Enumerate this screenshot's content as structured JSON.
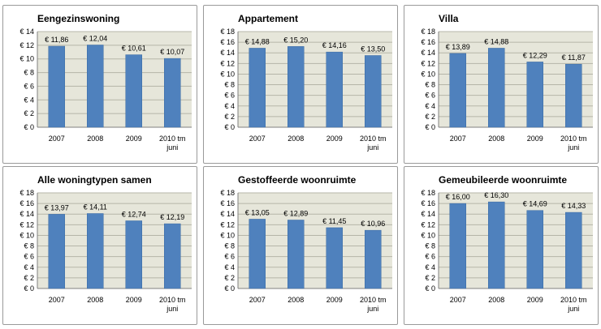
{
  "chart_data": [
    {
      "type": "bar",
      "title": "Eengezinswoning",
      "categories": [
        "2007",
        "2008",
        "2009",
        "2010 tm juni"
      ],
      "values": [
        11.86,
        12.04,
        10.61,
        10.07
      ],
      "data_labels": [
        "€ 11,86",
        "€ 12,04",
        "€ 10,61",
        "€ 10,07"
      ],
      "ylim": [
        0,
        14
      ],
      "yticks": [
        "€ 0",
        "€ 2",
        "€ 4",
        "€ 6",
        "€ 8",
        "€ 10",
        "€ 12",
        "€ 14"
      ],
      "grid": true,
      "legend": "none"
    },
    {
      "type": "bar",
      "title": "Appartement",
      "categories": [
        "2007",
        "2008",
        "2009",
        "2010 tm juni"
      ],
      "values": [
        14.88,
        15.2,
        14.16,
        13.5
      ],
      "data_labels": [
        "€ 14,88",
        "€ 15,20",
        "€ 14,16",
        "€ 13,50"
      ],
      "ylim": [
        0,
        18
      ],
      "yticks": [
        "€ 0",
        "€ 2",
        "€ 4",
        "€ 6",
        "€ 8",
        "€ 10",
        "€ 12",
        "€ 14",
        "€ 16",
        "€ 18"
      ],
      "grid": true,
      "legend": "none"
    },
    {
      "type": "bar",
      "title": "Villa",
      "categories": [
        "2007",
        "2008",
        "2009",
        "2010 tm juni"
      ],
      "values": [
        13.89,
        14.88,
        12.29,
        11.87
      ],
      "data_labels": [
        "€ 13,89",
        "€ 14,88",
        "€ 12,29",
        "€ 11,87"
      ],
      "ylim": [
        0,
        18
      ],
      "yticks": [
        "€ 0",
        "€ 2",
        "€ 4",
        "€ 6",
        "€ 8",
        "€ 10",
        "€ 12",
        "€ 14",
        "€ 16",
        "€ 18"
      ],
      "grid": true,
      "legend": "none"
    },
    {
      "type": "bar",
      "title": "Alle woningtypen samen",
      "categories": [
        "2007",
        "2008",
        "2009",
        "2010 tm juni"
      ],
      "values": [
        13.97,
        14.11,
        12.74,
        12.19
      ],
      "data_labels": [
        "€ 13,97",
        "€ 14,11",
        "€ 12,74",
        "€ 12,19"
      ],
      "ylim": [
        0,
        18
      ],
      "yticks": [
        "€ 0",
        "€ 2",
        "€ 4",
        "€ 6",
        "€ 8",
        "€ 10",
        "€ 12",
        "€ 14",
        "€ 16",
        "€ 18"
      ],
      "grid": true,
      "legend": "none"
    },
    {
      "type": "bar",
      "title": "Gestoffeerde woonruimte",
      "categories": [
        "2007",
        "2008",
        "2009",
        "2010 tm juni"
      ],
      "values": [
        13.05,
        12.89,
        11.45,
        10.96
      ],
      "data_labels": [
        "€ 13,05",
        "€ 12,89",
        "€ 11,45",
        "€ 10,96"
      ],
      "ylim": [
        0,
        18
      ],
      "yticks": [
        "€ 0",
        "€ 2",
        "€ 4",
        "€ 6",
        "€ 8",
        "€ 10",
        "€ 12",
        "€ 14",
        "€ 16",
        "€ 18"
      ],
      "grid": true,
      "legend": "none"
    },
    {
      "type": "bar",
      "title": "Gemeubileerde woonruimte",
      "categories": [
        "2007",
        "2008",
        "2009",
        "2010 tm juni"
      ],
      "values": [
        16.0,
        16.3,
        14.69,
        14.33
      ],
      "data_labels": [
        "€ 16,00",
        "€ 16,30",
        "€ 14,69",
        "€ 14,33"
      ],
      "ylim": [
        0,
        18
      ],
      "yticks": [
        "€ 0",
        "€ 2",
        "€ 4",
        "€ 6",
        "€ 8",
        "€ 10",
        "€ 12",
        "€ 14",
        "€ 16",
        "€ 18"
      ],
      "grid": true,
      "legend": "none"
    }
  ],
  "colors": {
    "bar": "#4f81bd",
    "bar_edge": "#3a6aa3",
    "plot_bg": "#e6e6da",
    "gridline": "#b5b5a8",
    "axis": "#808080",
    "text": "#000000"
  }
}
